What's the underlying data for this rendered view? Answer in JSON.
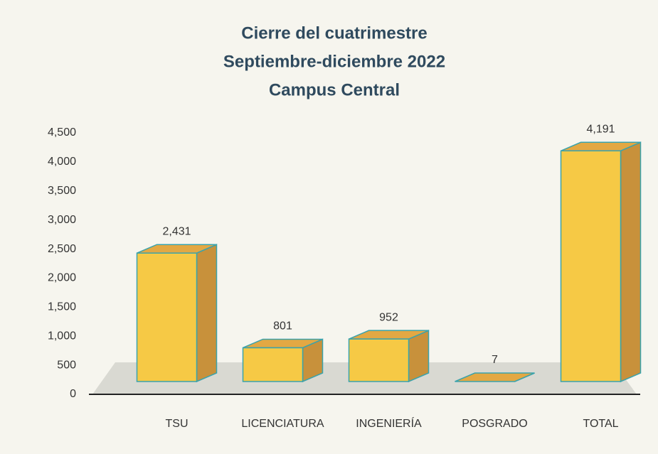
{
  "chart_data": {
    "type": "bar3d",
    "title": [
      "Cierre del cuatrimestre",
      "Septiembre-diciembre 2022",
      "Campus Central"
    ],
    "categories": [
      "TSU",
      "LICENCIATURA",
      "INGENIERÍA",
      "POSGRADO",
      "TOTAL"
    ],
    "values": [
      2431,
      801,
      952,
      7,
      4191
    ],
    "value_labels": [
      "2,431",
      "801",
      "952",
      "7",
      "4,191"
    ],
    "color": "#f6c945",
    "ylim": [
      0,
      4500
    ],
    "yticks": [
      0,
      500,
      {
        "value": 1000,
        "label": "1,000"
      },
      {
        "value": 1500,
        "label": "1,500"
      },
      {
        "value": 2000,
        "label": "2,000"
      },
      {
        "value": 2500,
        "label": "2,500"
      },
      {
        "value": 3000,
        "label": "3,000"
      },
      {
        "value": 3500,
        "label": "3,500"
      },
      {
        "value": 4000,
        "label": "4,000"
      },
      {
        "value": 4500,
        "label": "4,500"
      }
    ]
  }
}
